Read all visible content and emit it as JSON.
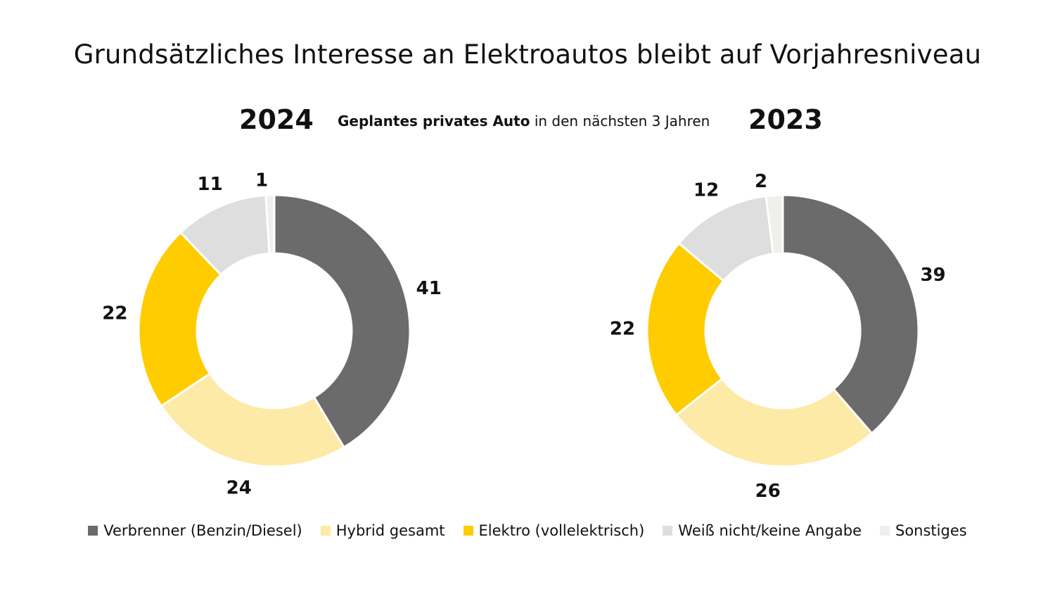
{
  "title": "Grundsätzliches Interesse an Elektroautos bleibt auf Vorjahresniveau",
  "subtitle_bold": "Geplantes privates Auto",
  "subtitle_rest": " in den nächsten 3 Jahren",
  "chart_data": [
    {
      "type": "pie",
      "style": "donut",
      "title": "2024",
      "categories": [
        "Verbrenner (Benzin/Diesel)",
        "Hybrid gesamt",
        "Elektro (vollelektrisch)",
        "Weiß nicht/keine Angabe",
        "Sonstiges"
      ],
      "values": [
        41,
        24,
        22,
        11,
        1
      ],
      "labels": [
        "41",
        "24",
        "22",
        "11",
        "1"
      ],
      "colors": [
        "#6b6b6b",
        "#fdeaa6",
        "#ffcc00",
        "#dedede",
        "#efefeb"
      ]
    },
    {
      "type": "pie",
      "style": "donut",
      "title": "2023",
      "categories": [
        "Verbrenner (Benzin/Diesel)",
        "Hybrid gesamt",
        "Elektro (vollelektrisch)",
        "Weiß nicht/keine Angabe",
        "Sonstiges"
      ],
      "values": [
        39,
        26,
        22,
        12,
        2
      ],
      "labels": [
        "39",
        "26",
        "22",
        "12",
        "2"
      ],
      "colors": [
        "#6b6b6b",
        "#fdeaa6",
        "#ffcc00",
        "#dedede",
        "#efefeb"
      ]
    }
  ],
  "legend": [
    {
      "label": "Verbrenner (Benzin/Diesel)",
      "color": "#6b6b6b"
    },
    {
      "label": "Hybrid gesamt",
      "color": "#fdeaa6"
    },
    {
      "label": "Elektro (vollelektrisch)",
      "color": "#ffcc00"
    },
    {
      "label": "Weiß nicht/keine Angabe",
      "color": "#dedede"
    },
    {
      "label": "Sonstiges",
      "color": "#efefeb"
    }
  ]
}
